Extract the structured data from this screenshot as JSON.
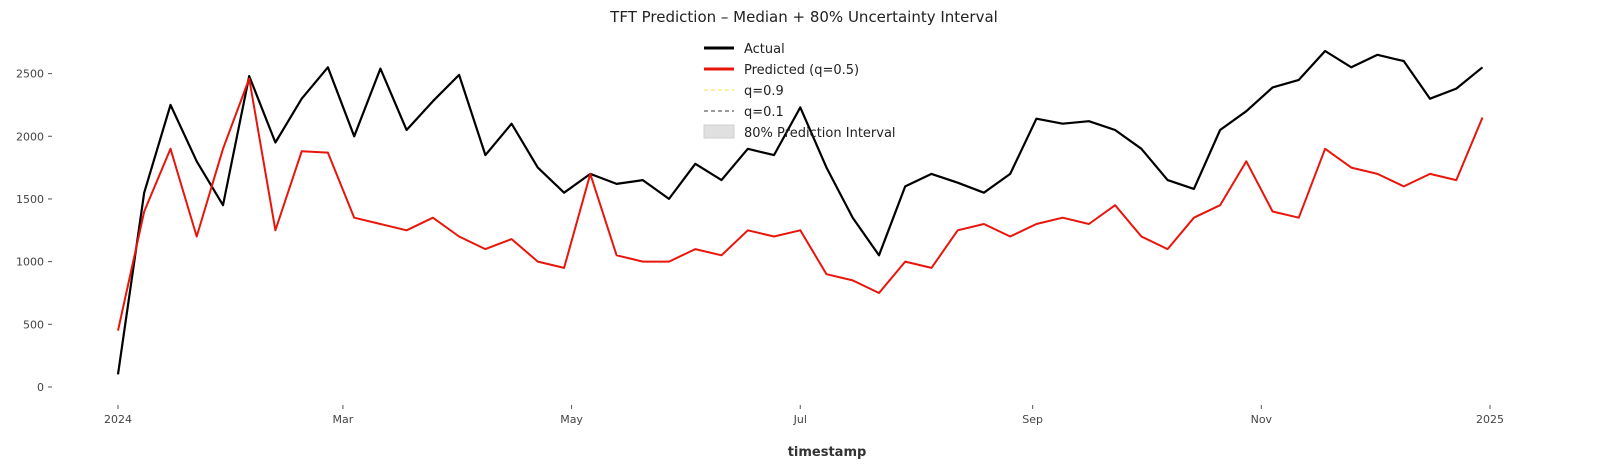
{
  "chart_data": {
    "type": "line",
    "title": "TFT Prediction – Median + 80% Uncertainty Interval",
    "xlabel": "timestamp",
    "ylabel": "",
    "x_range": [
      "2024-01-01",
      "2025-01-01"
    ],
    "ylim": [
      -120,
      2800
    ],
    "y_ticks": [
      0,
      500,
      1000,
      1500,
      2000,
      2500
    ],
    "x_ticks": [
      {
        "date": "2024-01-01",
        "label": "2024"
      },
      {
        "date": "2024-03-01",
        "label": "Mar"
      },
      {
        "date": "2024-05-01",
        "label": "May"
      },
      {
        "date": "2024-07-01",
        "label": "Jul"
      },
      {
        "date": "2024-09-01",
        "label": "Sep"
      },
      {
        "date": "2024-11-01",
        "label": "Nov"
      },
      {
        "date": "2025-01-01",
        "label": "2025"
      }
    ],
    "grid": false,
    "legend_position": "upper-center",
    "series": [
      {
        "name": "Actual",
        "color": "#000000",
        "style": "solid",
        "x": [
          "2024-01-01",
          "2024-01-08",
          "2024-01-15",
          "2024-01-22",
          "2024-01-29",
          "2024-02-05",
          "2024-02-12",
          "2024-02-19",
          "2024-02-26",
          "2024-03-04",
          "2024-03-11",
          "2024-03-18",
          "2024-03-25",
          "2024-04-01",
          "2024-04-08",
          "2024-04-15",
          "2024-04-22",
          "2024-04-29",
          "2024-05-06",
          "2024-05-13",
          "2024-05-20",
          "2024-05-27",
          "2024-06-03",
          "2024-06-10",
          "2024-06-17",
          "2024-06-24",
          "2024-07-01",
          "2024-07-08",
          "2024-07-15",
          "2024-07-22",
          "2024-07-29",
          "2024-08-05",
          "2024-08-12",
          "2024-08-19",
          "2024-08-26",
          "2024-09-02",
          "2024-09-09",
          "2024-09-16",
          "2024-09-23",
          "2024-09-30",
          "2024-10-07",
          "2024-10-14",
          "2024-10-21",
          "2024-10-28",
          "2024-11-04",
          "2024-11-11",
          "2024-11-18",
          "2024-11-25",
          "2024-12-02",
          "2024-12-09",
          "2024-12-16",
          "2024-12-23",
          "2024-12-30"
        ],
        "y": [
          100,
          1550,
          2250,
          1800,
          1450,
          2480,
          1950,
          2300,
          2550,
          2000,
          2540,
          2050,
          2280,
          2490,
          1850,
          2100,
          1750,
          1550,
          1700,
          1620,
          1650,
          1500,
          1780,
          1650,
          1900,
          1850,
          2230,
          1750,
          1350,
          1050,
          1600,
          1700,
          1630,
          1550,
          1700,
          2140,
          2100,
          2120,
          2050,
          1900,
          1650,
          1580,
          2050,
          2200,
          2390,
          2450,
          2680,
          2550,
          2650,
          2600,
          2300,
          2380,
          2550
        ]
      },
      {
        "name": "Predicted (q=0.5)",
        "color": "#e8150b",
        "style": "solid",
        "x": [
          "2024-01-01",
          "2024-01-08",
          "2024-01-15",
          "2024-01-22",
          "2024-01-29",
          "2024-02-05",
          "2024-02-12",
          "2024-02-19",
          "2024-02-26",
          "2024-03-04",
          "2024-03-11",
          "2024-03-18",
          "2024-03-25",
          "2024-04-01",
          "2024-04-08",
          "2024-04-15",
          "2024-04-22",
          "2024-04-29",
          "2024-05-06",
          "2024-05-13",
          "2024-05-20",
          "2024-05-27",
          "2024-06-03",
          "2024-06-10",
          "2024-06-17",
          "2024-06-24",
          "2024-07-01",
          "2024-07-08",
          "2024-07-15",
          "2024-07-22",
          "2024-07-29",
          "2024-08-05",
          "2024-08-12",
          "2024-08-19",
          "2024-08-26",
          "2024-09-02",
          "2024-09-09",
          "2024-09-16",
          "2024-09-23",
          "2024-09-30",
          "2024-10-07",
          "2024-10-14",
          "2024-10-21",
          "2024-10-28",
          "2024-11-04",
          "2024-11-11",
          "2024-11-18",
          "2024-11-25",
          "2024-12-02",
          "2024-12-09",
          "2024-12-16",
          "2024-12-23",
          "2024-12-30"
        ],
        "y": [
          450,
          1400,
          1900,
          1200,
          1900,
          2460,
          1250,
          1880,
          1870,
          1350,
          1300,
          1250,
          1350,
          1200,
          1100,
          1180,
          1000,
          950,
          1700,
          1050,
          1000,
          1000,
          1100,
          1050,
          1250,
          1200,
          1250,
          900,
          850,
          750,
          1000,
          950,
          1250,
          1300,
          1200,
          1300,
          1350,
          1300,
          1450,
          1200,
          1100,
          1350,
          1450,
          1800,
          1400,
          1350,
          1900,
          1750,
          1700,
          1600,
          1700,
          1650,
          2150
        ]
      },
      {
        "name": "q=0.9",
        "color": "#fff59d",
        "style": "dashed",
        "x": [],
        "y": []
      },
      {
        "name": "q=0.1",
        "color": "#7a7a7a",
        "style": "dashed",
        "x": [],
        "y": []
      },
      {
        "name": "80% Prediction Interval",
        "color": "#cccccc",
        "style": "band",
        "x": [],
        "y": []
      }
    ]
  }
}
